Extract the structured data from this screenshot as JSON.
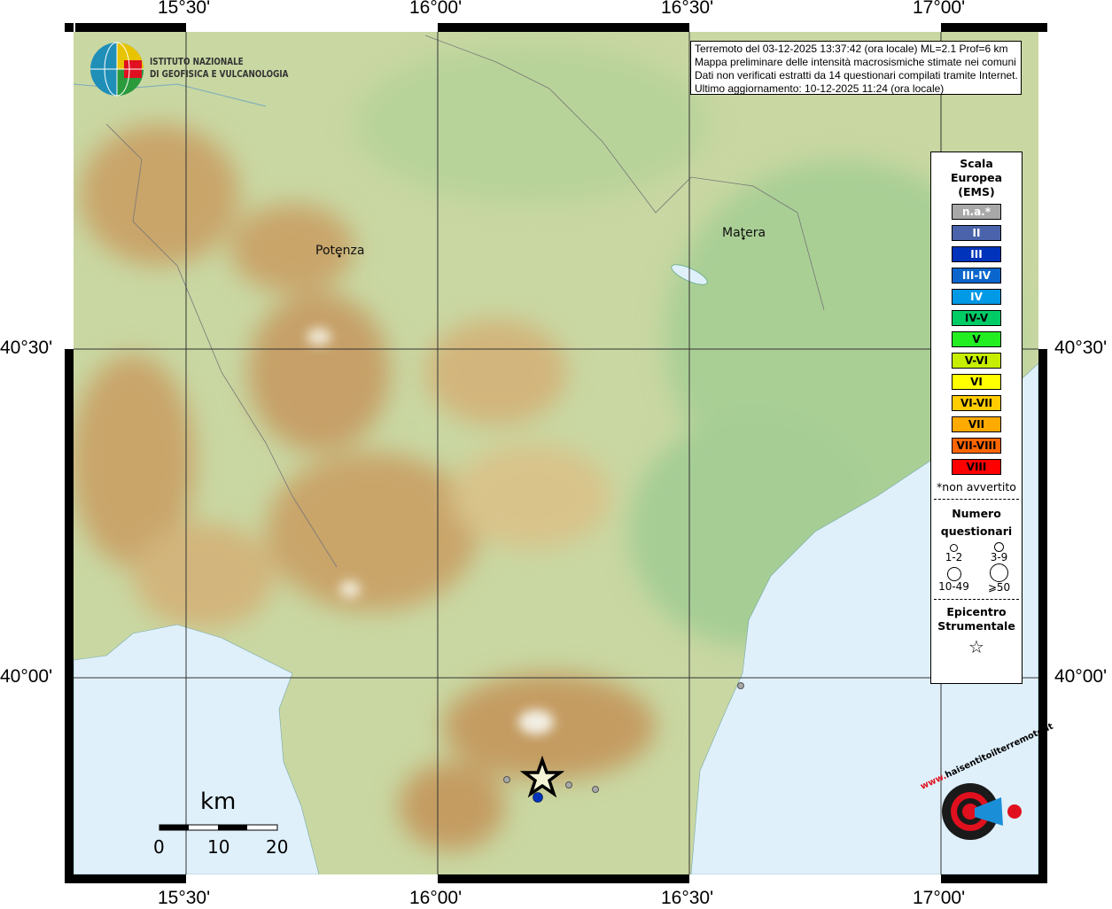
{
  "coords": {
    "top": [
      "15°30'",
      "16°00'",
      "16°30'",
      "17°00'"
    ],
    "bottom": [
      "15°30'",
      "16°00'",
      "16°30'",
      "17°00'"
    ],
    "left": [
      "40°30'",
      "40°00'"
    ],
    "right": [
      "40°30'",
      "40°00'"
    ]
  },
  "logo": {
    "line1": "ISTITUTO NAZIONALE",
    "line2": "DI GEOFISICA E VULCANOLOGIA"
  },
  "info": {
    "lines": [
      "Terremoto del 03-12-2025 13:37:42 (ora locale) ML=2.1 Prof=6 km",
      "Mappa preliminare delle intensità macrosismiche stimate nei comuni",
      "Dati non verificati estratti da 14 questionari compilati tramite Internet.",
      "Ultimo aggiornamento: 10-12-2025 11:24 (ora locale)"
    ]
  },
  "legend": {
    "title": [
      "Scala",
      "Europea",
      "(EMS)"
    ],
    "scale": [
      {
        "label": "n.a.*",
        "color": "#a8a8a8",
        "text": "#fff"
      },
      {
        "label": "II",
        "color": "#4a63ab",
        "text": "#fff"
      },
      {
        "label": "III",
        "color": "#0033bb",
        "text": "#fff"
      },
      {
        "label": "III-IV",
        "color": "#0a66cc",
        "text": "#fff"
      },
      {
        "label": "IV",
        "color": "#0099e6",
        "text": "#fff"
      },
      {
        "label": "IV-V",
        "color": "#00cc66",
        "text": "#000"
      },
      {
        "label": "V",
        "color": "#22ee22",
        "text": "#000"
      },
      {
        "label": "V-VI",
        "color": "#c6ee00",
        "text": "#000"
      },
      {
        "label": "VI",
        "color": "#ffff00",
        "text": "#000"
      },
      {
        "label": "VI-VII",
        "color": "#ffcc00",
        "text": "#000"
      },
      {
        "label": "VII",
        "color": "#ffaa00",
        "text": "#000"
      },
      {
        "label": "VII-VIII",
        "color": "#ff6600",
        "text": "#000"
      },
      {
        "label": "VIII",
        "color": "#ff0000",
        "text": "#000"
      }
    ],
    "note": "*non avvertito",
    "count_title": [
      "Numero",
      "questionari"
    ],
    "counts": [
      "1-2",
      "3-9",
      "10-49",
      "⩾50"
    ],
    "epi_title": [
      "Epicentro",
      "Strumentale"
    ]
  },
  "cities": [
    {
      "name": "Potenza"
    },
    {
      "name": "Matera"
    }
  ],
  "scalebar": {
    "unit": "km",
    "ticks": [
      "0",
      "10",
      "20"
    ]
  },
  "badge": {
    "text": "haisentitoilterremoto.it",
    "prefix": "www."
  },
  "points": [
    {
      "intensity": "n.a.*",
      "color": "#a8a8a8"
    },
    {
      "intensity": "n.a.*",
      "color": "#a8a8a8"
    },
    {
      "intensity": "n.a.*",
      "color": "#a8a8a8"
    },
    {
      "intensity": "n.a.*",
      "color": "#a8a8a8"
    },
    {
      "intensity": "III",
      "color": "#0033bb"
    }
  ]
}
